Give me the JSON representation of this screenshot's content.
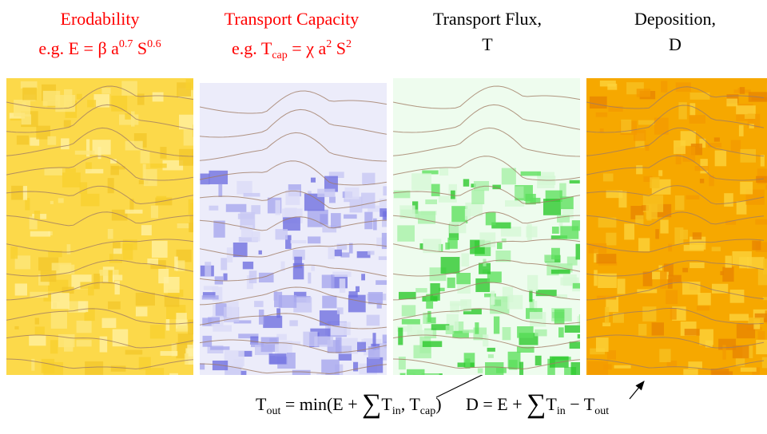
{
  "panels": [
    {
      "title": "Erodability",
      "color": "#ff0000",
      "formula": [
        {
          "text": "e.g. E = β a"
        },
        {
          "text": "0.7",
          "style": "sup"
        },
        {
          "text": " S"
        },
        {
          "text": "0.6",
          "style": "sup"
        }
      ]
    },
    {
      "title": "Transport Capacity",
      "color": "#ff0000",
      "formula": [
        {
          "text": "e.g. T"
        },
        {
          "text": "cap",
          "style": "sub"
        },
        {
          "text": " = χ a"
        },
        {
          "text": "2",
          "style": "sup"
        },
        {
          "text": " S"
        },
        {
          "text": "2",
          "style": "sup"
        }
      ]
    },
    {
      "title": "Transport Flux,",
      "color": "#000000",
      "formula": [
        {
          "text": "T"
        }
      ]
    },
    {
      "title": "Deposition,",
      "color": "#000000",
      "formula": [
        {
          "text": "D"
        }
      ]
    }
  ],
  "equations": [
    [
      {
        "text": "T"
      },
      {
        "text": "out",
        "style": "sub"
      },
      {
        "text": " = min(E + "
      },
      {
        "text": "∑",
        "style": "big"
      },
      {
        "text": "T"
      },
      {
        "text": "in",
        "style": "sub"
      },
      {
        "text": ", T"
      },
      {
        "text": "cap",
        "style": "sub"
      },
      {
        "text": ")"
      }
    ],
    [
      {
        "text": "D = E + "
      },
      {
        "text": "∑",
        "style": "big"
      },
      {
        "text": "T"
      },
      {
        "text": "in",
        "style": "sub"
      },
      {
        "text": " − T"
      },
      {
        "text": "out",
        "style": "sub"
      }
    ]
  ]
}
